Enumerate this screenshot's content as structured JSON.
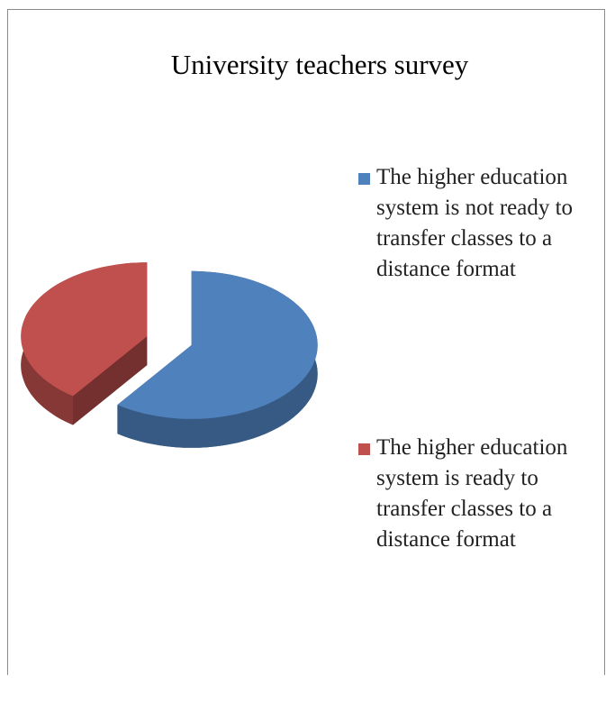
{
  "chart_data": {
    "type": "pie",
    "title": "University teachers survey",
    "categories": [
      "The higher education system is not ready to transfer classes to a distance format",
      "The higher education system is ready to transfer classes to a distance format"
    ],
    "values": [
      60,
      40
    ],
    "colors": [
      "#4f81bd",
      "#c0504d"
    ],
    "legend": "right"
  }
}
